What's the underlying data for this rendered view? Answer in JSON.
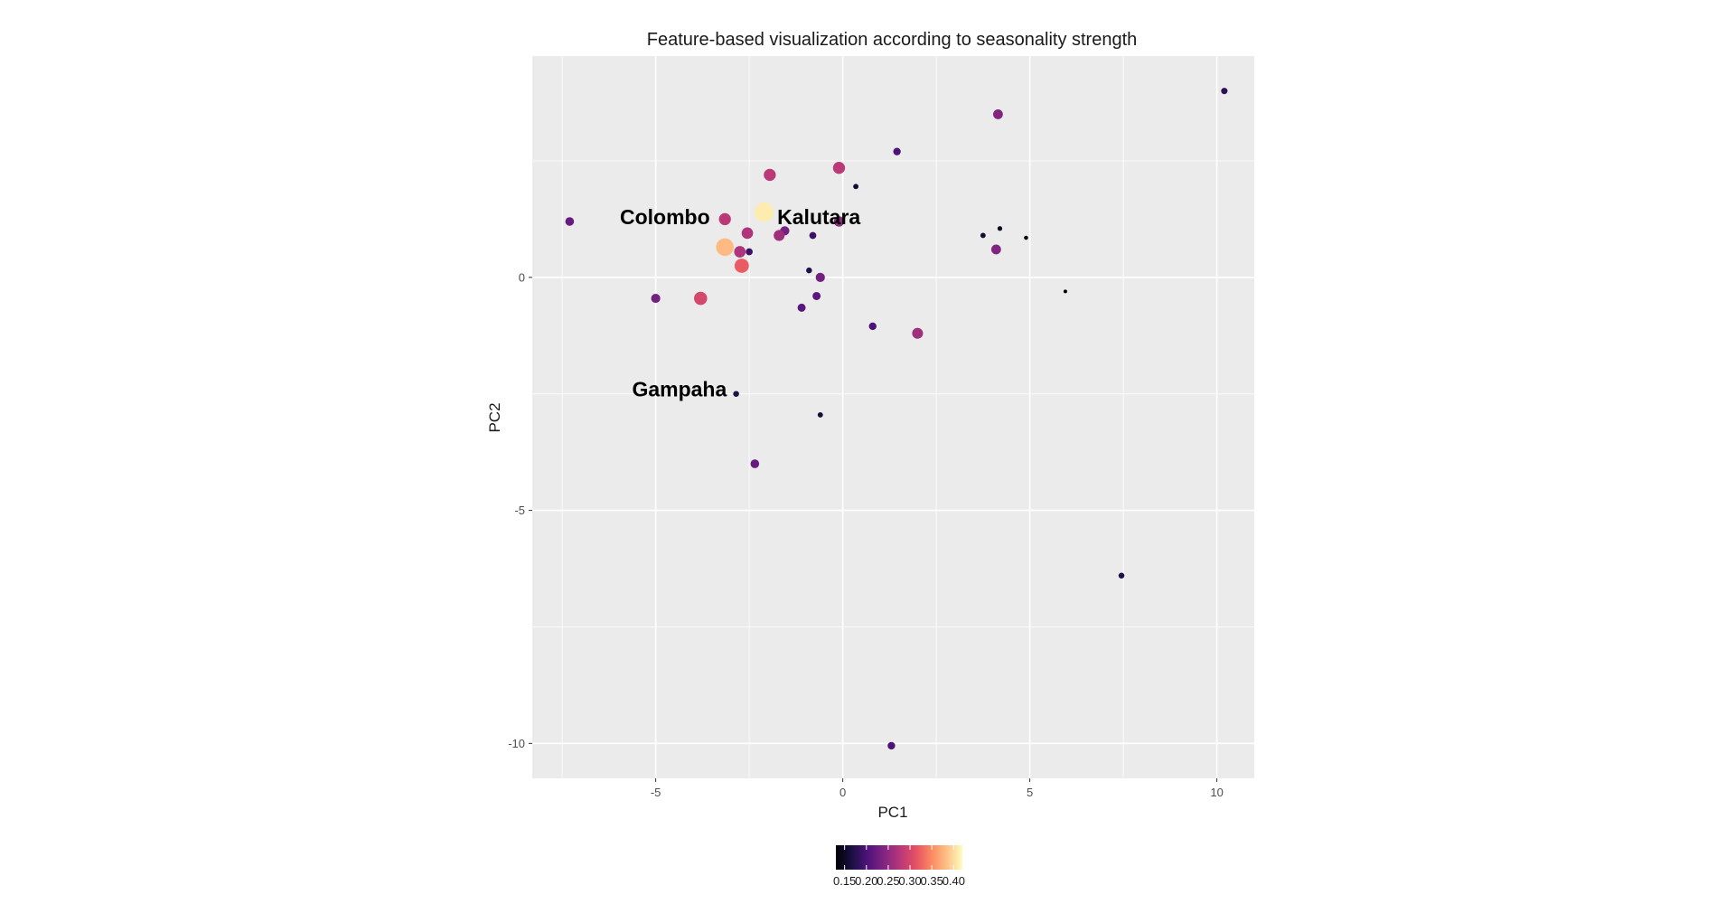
{
  "chart_data": {
    "type": "scatter",
    "title": "Feature-based visualization according to seasonality strength",
    "xlabel": "PC1",
    "ylabel": "PC2",
    "xlim": [
      -8.3,
      11
    ],
    "ylim": [
      -10.75,
      4.75
    ],
    "x_ticks": [
      -5,
      0,
      5,
      10
    ],
    "y_ticks": [
      -10,
      -5,
      0
    ],
    "x_tick_labels": [
      "-5",
      "0",
      "5",
      "10"
    ],
    "y_tick_labels": [
      "-10",
      "-5",
      "0"
    ],
    "grid": true,
    "panel_background": "#ebebeb",
    "grid_color": "#ffffff",
    "color_scale": "magma",
    "color_range": [
      0.13,
      0.42
    ],
    "legend": {
      "position": "bottom",
      "ticks": [
        0.15,
        0.2,
        0.25,
        0.3,
        0.35,
        0.4
      ],
      "tick_labels": [
        "0.15",
        "0.20",
        "0.25",
        "0.30",
        "0.35",
        "0.40"
      ]
    },
    "points": [
      {
        "x": -7.3,
        "y": 1.2,
        "strength": 0.22
      },
      {
        "x": -5.0,
        "y": -0.45,
        "strength": 0.23
      },
      {
        "x": -3.8,
        "y": -0.45,
        "strength": 0.3
      },
      {
        "x": -3.15,
        "y": 1.25,
        "strength": 0.28
      },
      {
        "x": -3.15,
        "y": 0.65,
        "strength": 0.38
      },
      {
        "x": -2.75,
        "y": 0.55,
        "strength": 0.27
      },
      {
        "x": -2.7,
        "y": 0.25,
        "strength": 0.32
      },
      {
        "x": -2.55,
        "y": 0.95,
        "strength": 0.27
      },
      {
        "x": -2.5,
        "y": 0.55,
        "strength": 0.19
      },
      {
        "x": -2.1,
        "y": 1.4,
        "strength": 0.41
      },
      {
        "x": -1.95,
        "y": 2.2,
        "strength": 0.28
      },
      {
        "x": -1.7,
        "y": 0.9,
        "strength": 0.26
      },
      {
        "x": -1.55,
        "y": 1.0,
        "strength": 0.23
      },
      {
        "x": -1.1,
        "y": -0.65,
        "strength": 0.21
      },
      {
        "x": -0.9,
        "y": 0.15,
        "strength": 0.17
      },
      {
        "x": -0.8,
        "y": 0.9,
        "strength": 0.19
      },
      {
        "x": -0.7,
        "y": -0.4,
        "strength": 0.21
      },
      {
        "x": -0.6,
        "y": 0.0,
        "strength": 0.23
      },
      {
        "x": -0.6,
        "y": -2.95,
        "strength": 0.16
      },
      {
        "x": -0.1,
        "y": 2.35,
        "strength": 0.28
      },
      {
        "x": -0.1,
        "y": 1.2,
        "strength": 0.25
      },
      {
        "x": 0.35,
        "y": 1.95,
        "strength": 0.16
      },
      {
        "x": 0.8,
        "y": -1.05,
        "strength": 0.2
      },
      {
        "x": 1.3,
        "y": -10.05,
        "strength": 0.2
      },
      {
        "x": 1.45,
        "y": 2.7,
        "strength": 0.2
      },
      {
        "x": 2.0,
        "y": -1.2,
        "strength": 0.26
      },
      {
        "x": 3.75,
        "y": 0.9,
        "strength": 0.16
      },
      {
        "x": 4.1,
        "y": 0.6,
        "strength": 0.24
      },
      {
        "x": 4.15,
        "y": 3.5,
        "strength": 0.24
      },
      {
        "x": 4.2,
        "y": 1.05,
        "strength": 0.15
      },
      {
        "x": 4.9,
        "y": 0.85,
        "strength": 0.14
      },
      {
        "x": 5.95,
        "y": -0.3,
        "strength": 0.13
      },
      {
        "x": 7.45,
        "y": -6.4,
        "strength": 0.17
      },
      {
        "x": 10.2,
        "y": 4.0,
        "strength": 0.18
      },
      {
        "x": -2.85,
        "y": -2.5,
        "strength": 0.17
      },
      {
        "x": -2.35,
        "y": -4.0,
        "strength": 0.22
      }
    ],
    "annotations": [
      {
        "text": "Colombo",
        "x": -3.55,
        "y": 1.3,
        "anchor": "end"
      },
      {
        "text": "Kalutara",
        "x": -1.75,
        "y": 1.3,
        "anchor": "start"
      },
      {
        "text": "Gampaha",
        "x": -3.1,
        "y": -2.4,
        "anchor": "end"
      }
    ]
  }
}
